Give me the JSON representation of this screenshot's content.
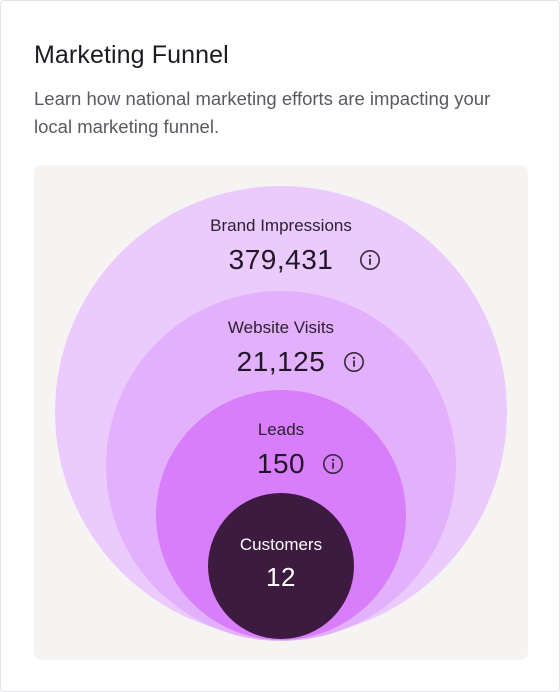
{
  "card": {
    "title": "Marketing Funnel",
    "subtitle": "Learn how national marketing efforts are impacting your local marketing funnel."
  },
  "colors": {
    "panel_background": "#f6f4f2",
    "brand_impressions": "#ebcbfd",
    "website_visits": "#e3b0fb",
    "leads": "#d97efa",
    "customers": "#3d1a3f"
  },
  "funnel": [
    {
      "label": "Brand Impressions",
      "value": "379,431",
      "icon": "info-icon"
    },
    {
      "label": "Website Visits",
      "value": "21,125",
      "icon": "info-icon"
    },
    {
      "label": "Leads",
      "value": "150",
      "icon": "info-icon"
    },
    {
      "label": "Customers",
      "value": "12"
    }
  ]
}
